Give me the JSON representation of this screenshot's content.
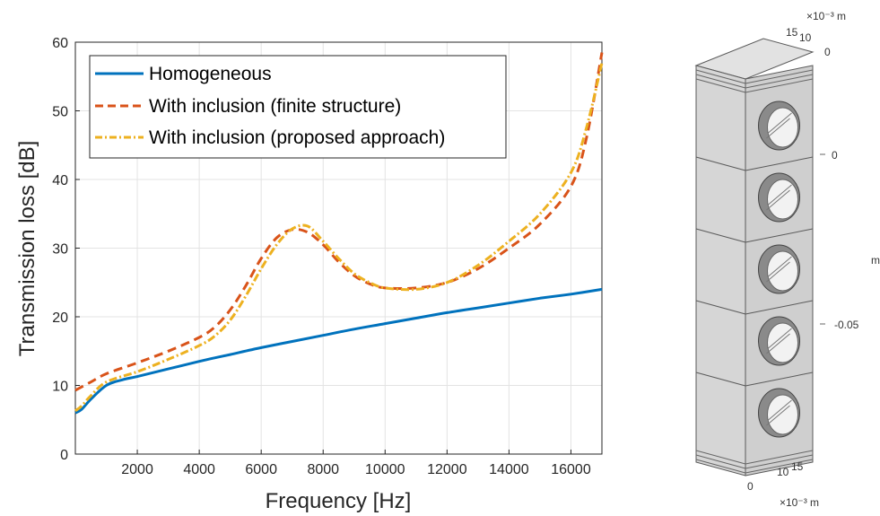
{
  "chart_data": {
    "type": "line",
    "title": "",
    "xlabel": "Frequency [Hz]",
    "ylabel": "Transmission loss [dB]",
    "xlim": [
      0,
      17000
    ],
    "ylim": [
      0,
      60
    ],
    "xticks": [
      2000,
      4000,
      6000,
      8000,
      10000,
      12000,
      14000,
      16000
    ],
    "yticks": [
      0,
      10,
      20,
      30,
      40,
      50,
      60
    ],
    "grid": true,
    "legend": "top-left",
    "series": [
      {
        "name": "Homogeneous",
        "color": "#0072bd",
        "style": "solid",
        "x": [
          0,
          200,
          500,
          1000,
          1500,
          2000,
          3000,
          4000,
          5000,
          6000,
          7000,
          8000,
          9000,
          10000,
          11000,
          12000,
          13000,
          14000,
          15000,
          16000,
          17000
        ],
        "y": [
          6.0,
          6.5,
          8.0,
          10.0,
          10.8,
          11.3,
          12.4,
          13.5,
          14.5,
          15.5,
          16.4,
          17.3,
          18.2,
          19.0,
          19.8,
          20.6,
          21.3,
          22.0,
          22.7,
          23.3,
          24.0
        ]
      },
      {
        "name": "With inclusion (finite structure)",
        "color": "#d95319",
        "style": "dashed",
        "x": [
          0,
          500,
          1000,
          2000,
          3000,
          4000,
          4500,
          5000,
          5500,
          6000,
          6500,
          7000,
          7500,
          8000,
          8500,
          9000,
          9500,
          10000,
          11000,
          12000,
          13000,
          14000,
          15000,
          16000,
          16500,
          17000
        ],
        "y": [
          9.3,
          10.5,
          11.7,
          13.3,
          15.0,
          17.0,
          18.5,
          21.0,
          24.5,
          28.5,
          31.5,
          32.7,
          32.3,
          30.5,
          28.0,
          26.0,
          24.8,
          24.2,
          24.2,
          25.0,
          27.0,
          30.0,
          33.5,
          39.0,
          46.0,
          58.5
        ]
      },
      {
        "name": "With inclusion (proposed approach)",
        "color": "#edb120",
        "style": "dashdot",
        "x": [
          0,
          200,
          500,
          1000,
          2000,
          3000,
          4000,
          4500,
          5000,
          5500,
          6000,
          6500,
          7000,
          7500,
          8000,
          8500,
          9000,
          9500,
          10000,
          11000,
          12000,
          13000,
          14000,
          15000,
          16000,
          16500,
          17000
        ],
        "y": [
          6.3,
          7.0,
          8.5,
          10.5,
          12.0,
          13.8,
          15.8,
          17.2,
          19.5,
          23.0,
          27.0,
          30.5,
          32.8,
          33.2,
          31.0,
          28.5,
          26.3,
          25.0,
          24.2,
          24.0,
          25.0,
          27.5,
          31.0,
          35.0,
          41.0,
          47.5,
          57.0
        ]
      }
    ]
  },
  "model3d": {
    "top_unit": "×10⁻³ m",
    "top_ticks": [
      "15",
      "10",
      "0"
    ],
    "side_ticks": [
      "0",
      "-0.05"
    ],
    "side_unit": "m",
    "bottom_ticks": [
      "0",
      "10",
      "15"
    ],
    "bottom_unit": "×10⁻³ m",
    "cells": 5
  }
}
